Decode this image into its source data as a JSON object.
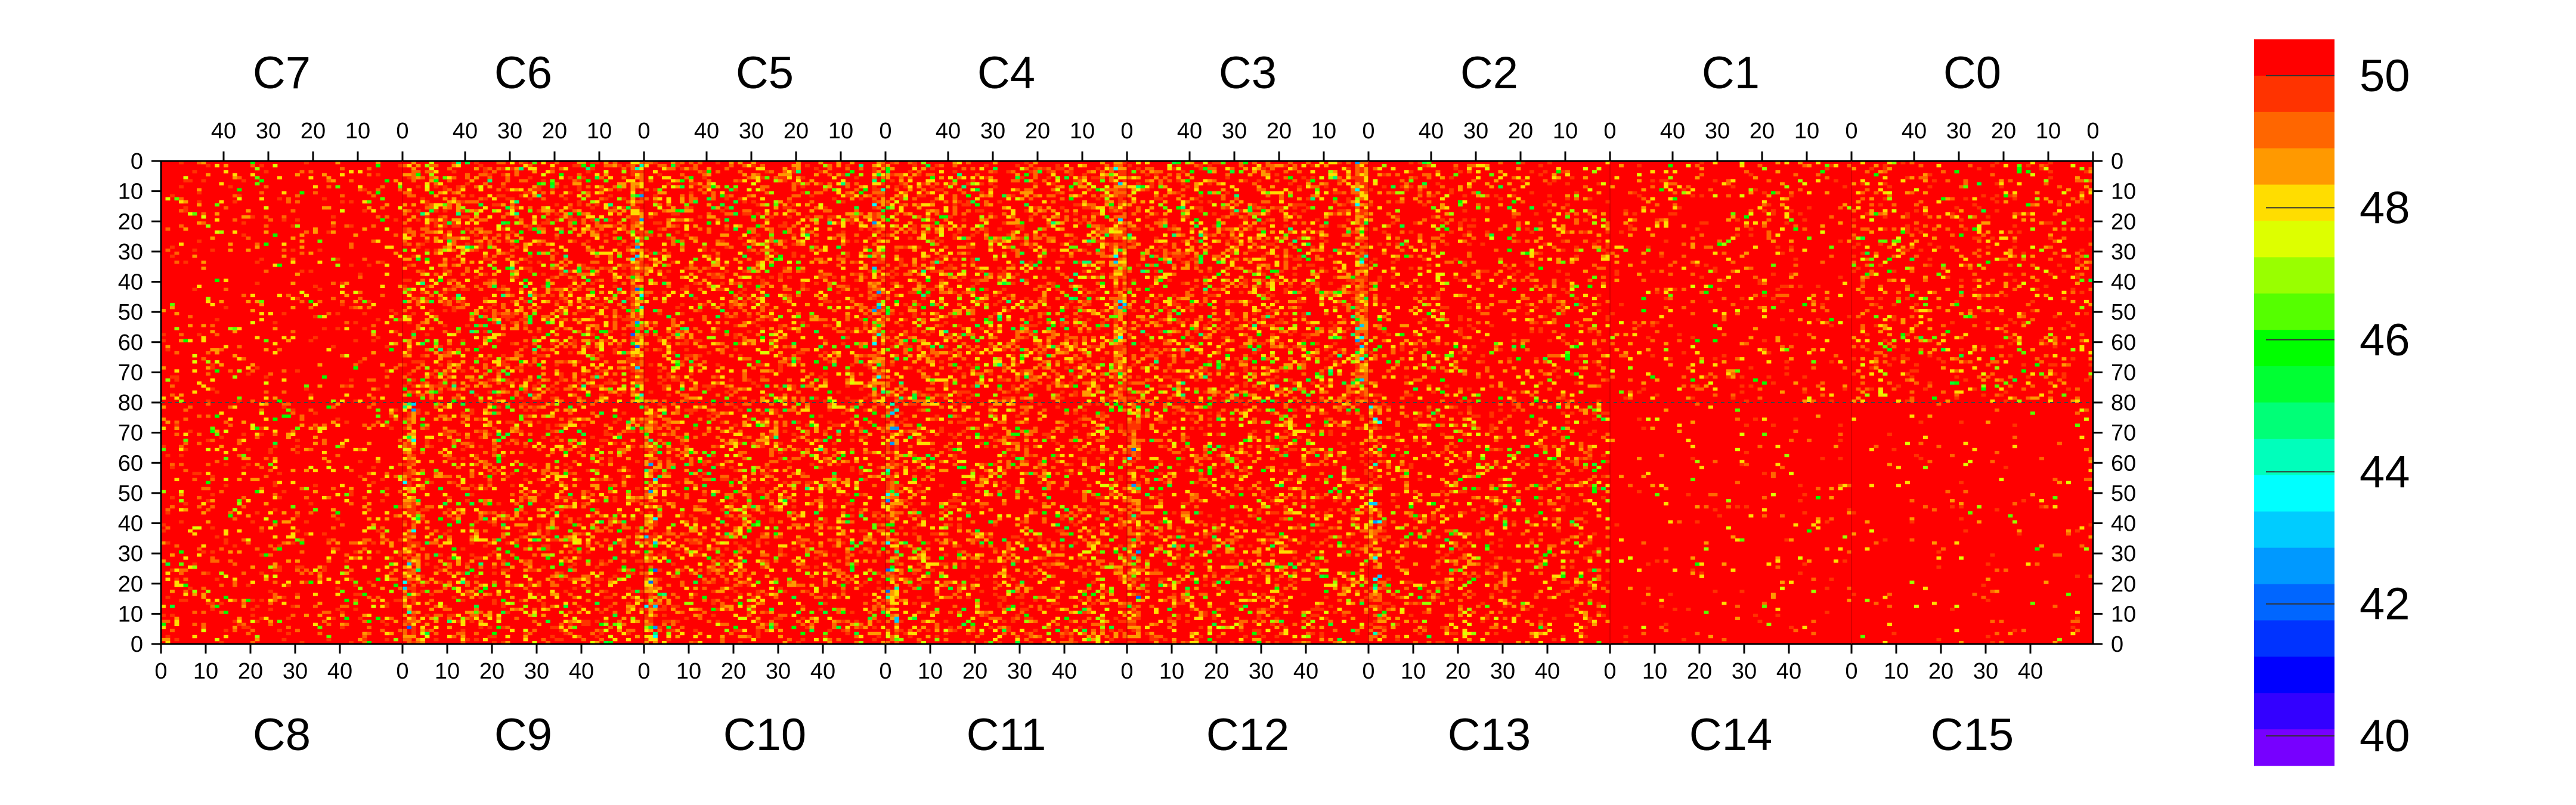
{
  "chart_data": {
    "type": "heatmap",
    "title": "",
    "chip_labels_top": [
      "C7",
      "C6",
      "C5",
      "C4",
      "C3",
      "C2",
      "C1",
      "C0"
    ],
    "chip_labels_bottom": [
      "C8",
      "C9",
      "C10",
      "C11",
      "C12",
      "C13",
      "C14",
      "C15"
    ],
    "columns_per_chip": 54,
    "rows_per_half": 80,
    "x_ticks_top": [
      "40",
      "30",
      "20",
      "10",
      "0"
    ],
    "x_ticks_top_values": [
      40,
      30,
      20,
      10,
      0
    ],
    "x_ticks_bottom": [
      "0",
      "10",
      "20",
      "30",
      "40"
    ],
    "x_ticks_bottom_values": [
      0,
      10,
      20,
      30,
      40
    ],
    "y_ticks_upper": [
      "0",
      "10",
      "20",
      "30",
      "40",
      "50",
      "60",
      "70",
      "80"
    ],
    "y_ticks_lower": [
      "70",
      "60",
      "50",
      "40",
      "30",
      "20",
      "10",
      "0"
    ],
    "z_range": [
      39,
      50
    ],
    "colorbar_ticks": [
      "50",
      "48",
      "46",
      "44",
      "42",
      "40"
    ],
    "colorbar_tick_values": [
      50,
      48,
      46,
      44,
      42,
      40
    ],
    "colorbar_colors": [
      "#ff0000",
      "#ff3300",
      "#ff6600",
      "#ff9900",
      "#ffdd00",
      "#ddff00",
      "#99ff00",
      "#55ff00",
      "#00ff00",
      "#00ff33",
      "#00ff77",
      "#00ffbb",
      "#00ffff",
      "#00ccff",
      "#0099ff",
      "#0066ff",
      "#0033ff",
      "#0000ff",
      "#3300ff",
      "#7700ff"
    ],
    "colorbar_bounds": [
      50.55,
      50,
      49.45,
      48.9,
      48.35,
      47.8,
      47.25,
      46.7,
      46.15,
      45.6,
      45.05,
      44.5,
      43.95,
      43.4,
      42.85,
      42.3,
      41.75,
      41.2,
      40.65,
      40.1,
      39.55
    ],
    "background_color": "#ff0000",
    "chip_activity_top": [
      0.1,
      0.35,
      0.3,
      0.35,
      0.35,
      0.2,
      0.12,
      0.18
    ],
    "chip_activity_bottom": [
      0.15,
      0.3,
      0.3,
      0.28,
      0.28,
      0.22,
      0.04,
      0.04
    ],
    "hot_columns_note": "bright yellow/green stripes near chip boundaries at columns ~2 of C6/C5/C4/C3/C2"
  }
}
